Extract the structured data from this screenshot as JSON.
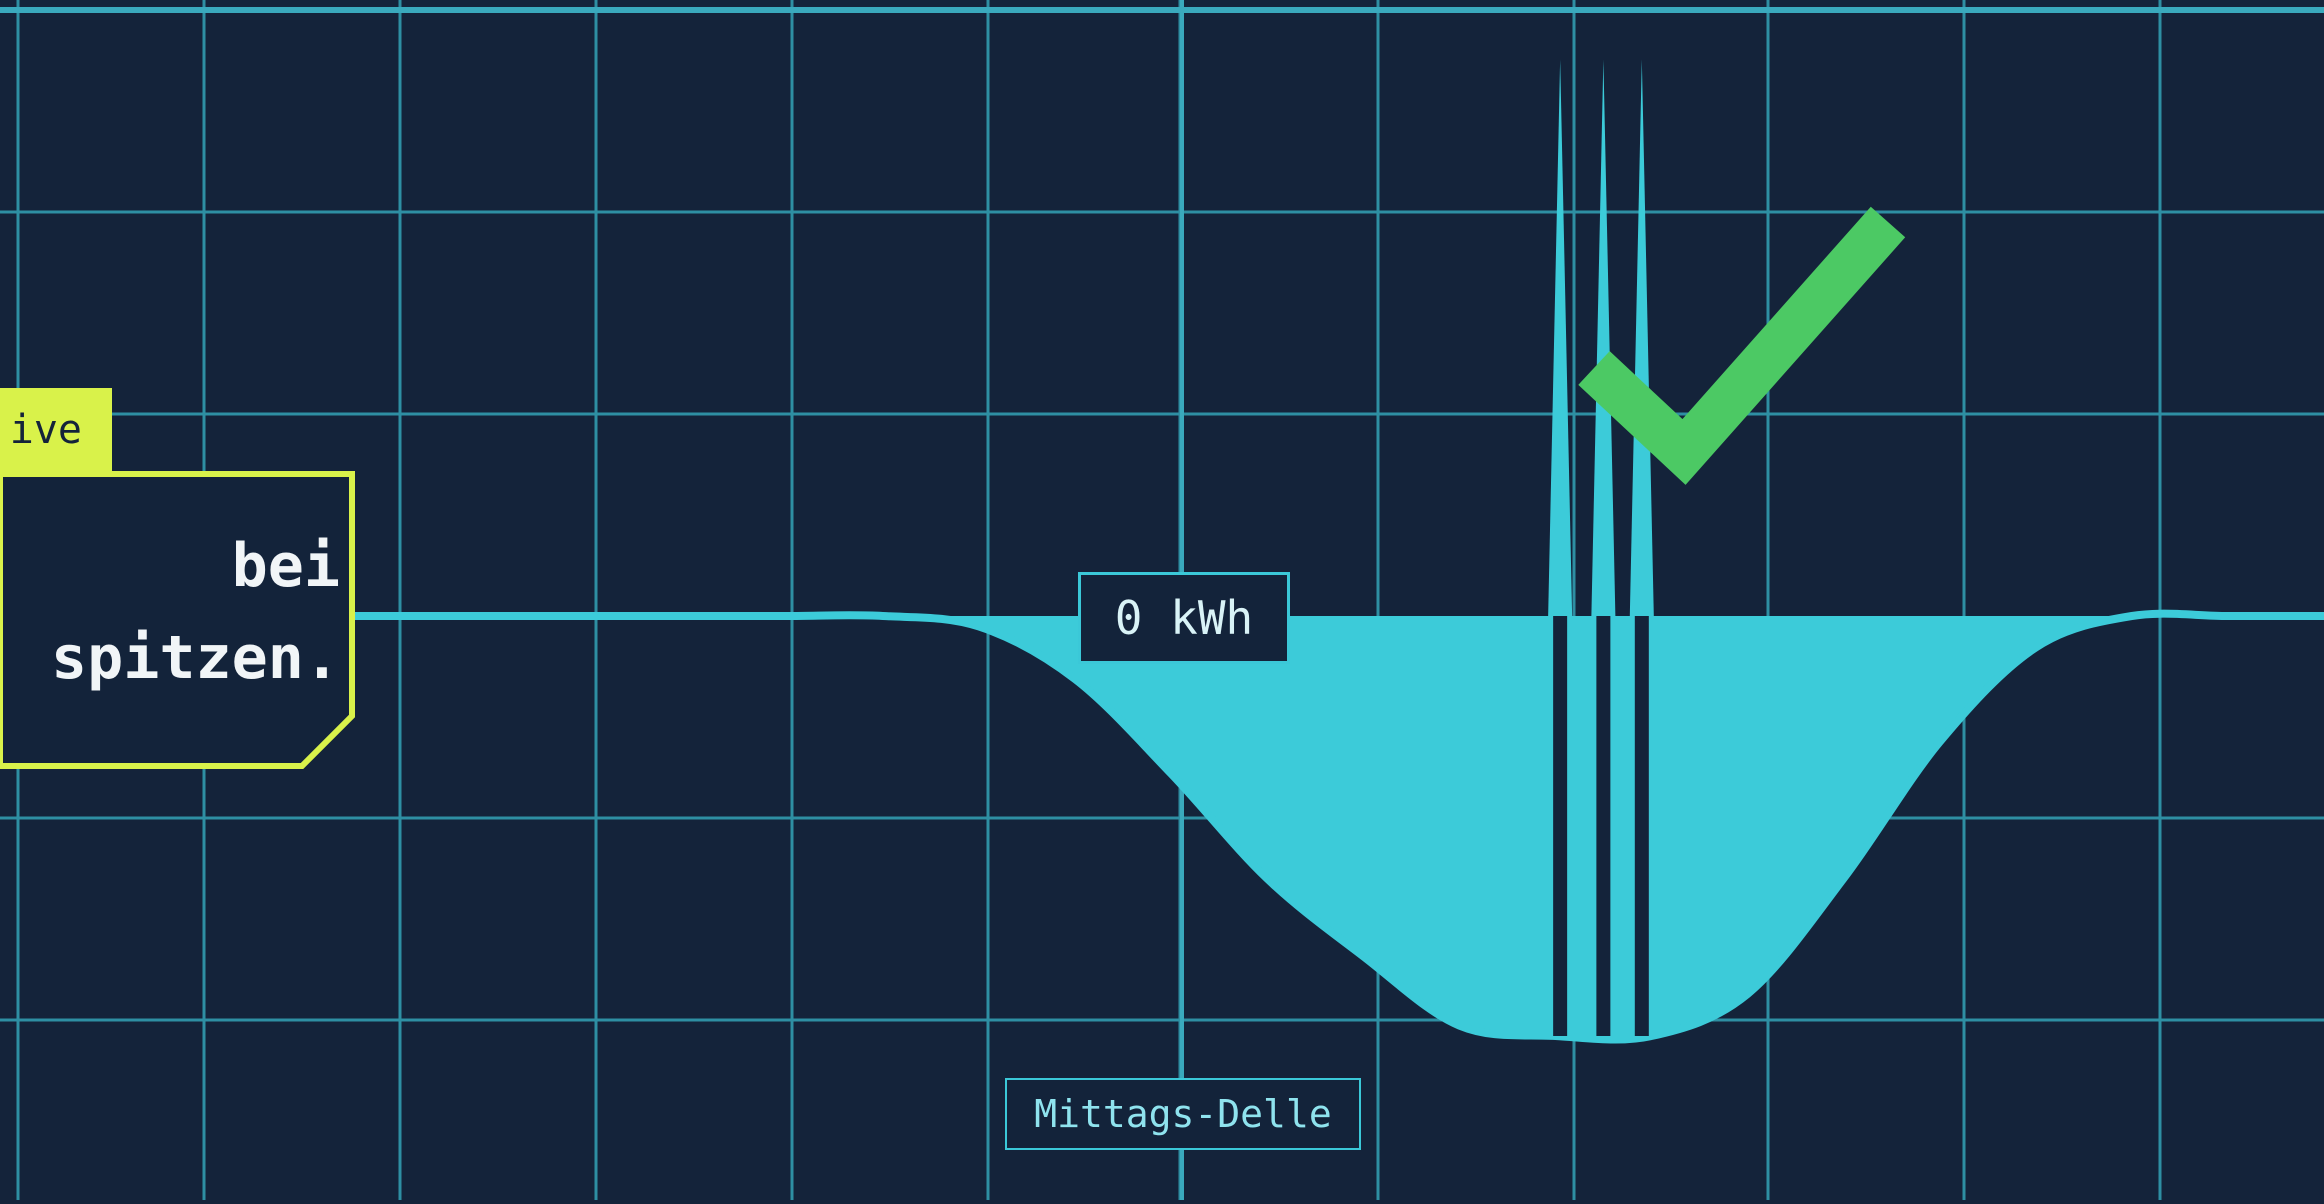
{
  "chart_data": {
    "type": "area",
    "title": "",
    "xlabel": "",
    "ylabel": "",
    "x": [
      0,
      1,
      2,
      3,
      4,
      5,
      6,
      7,
      8,
      9,
      10,
      11,
      12,
      13,
      14,
      15,
      16,
      17,
      18,
      19,
      20,
      21,
      22,
      23,
      24
    ],
    "series": [
      {
        "values": [
          0,
          0,
          0,
          0,
          0,
          0,
          0,
          0,
          0,
          0,
          -0.05,
          -0.3,
          -0.75,
          -1.25,
          -1.62,
          -1.95,
          -2.0,
          -2.0,
          -1.8,
          -1.25,
          -0.6,
          -0.15,
          0,
          0,
          0
        ]
      }
    ],
    "spikes": [
      {
        "x": 16.05,
        "value": 2.65
      },
      {
        "x": 16.5,
        "value": 2.65
      },
      {
        "x": 16.9,
        "value": 2.65
      }
    ],
    "zero_label": "0 kWh",
    "dip_label": "Mittags-Delle",
    "color": "#3ccbd9",
    "grid": true
  },
  "callout": {
    "tag": "ive",
    "text_line1": "bei",
    "text_line2": "spitzen.",
    "tag_color": "#d9f24a"
  },
  "check_color": "#4cc964",
  "background_color": "#14233a"
}
